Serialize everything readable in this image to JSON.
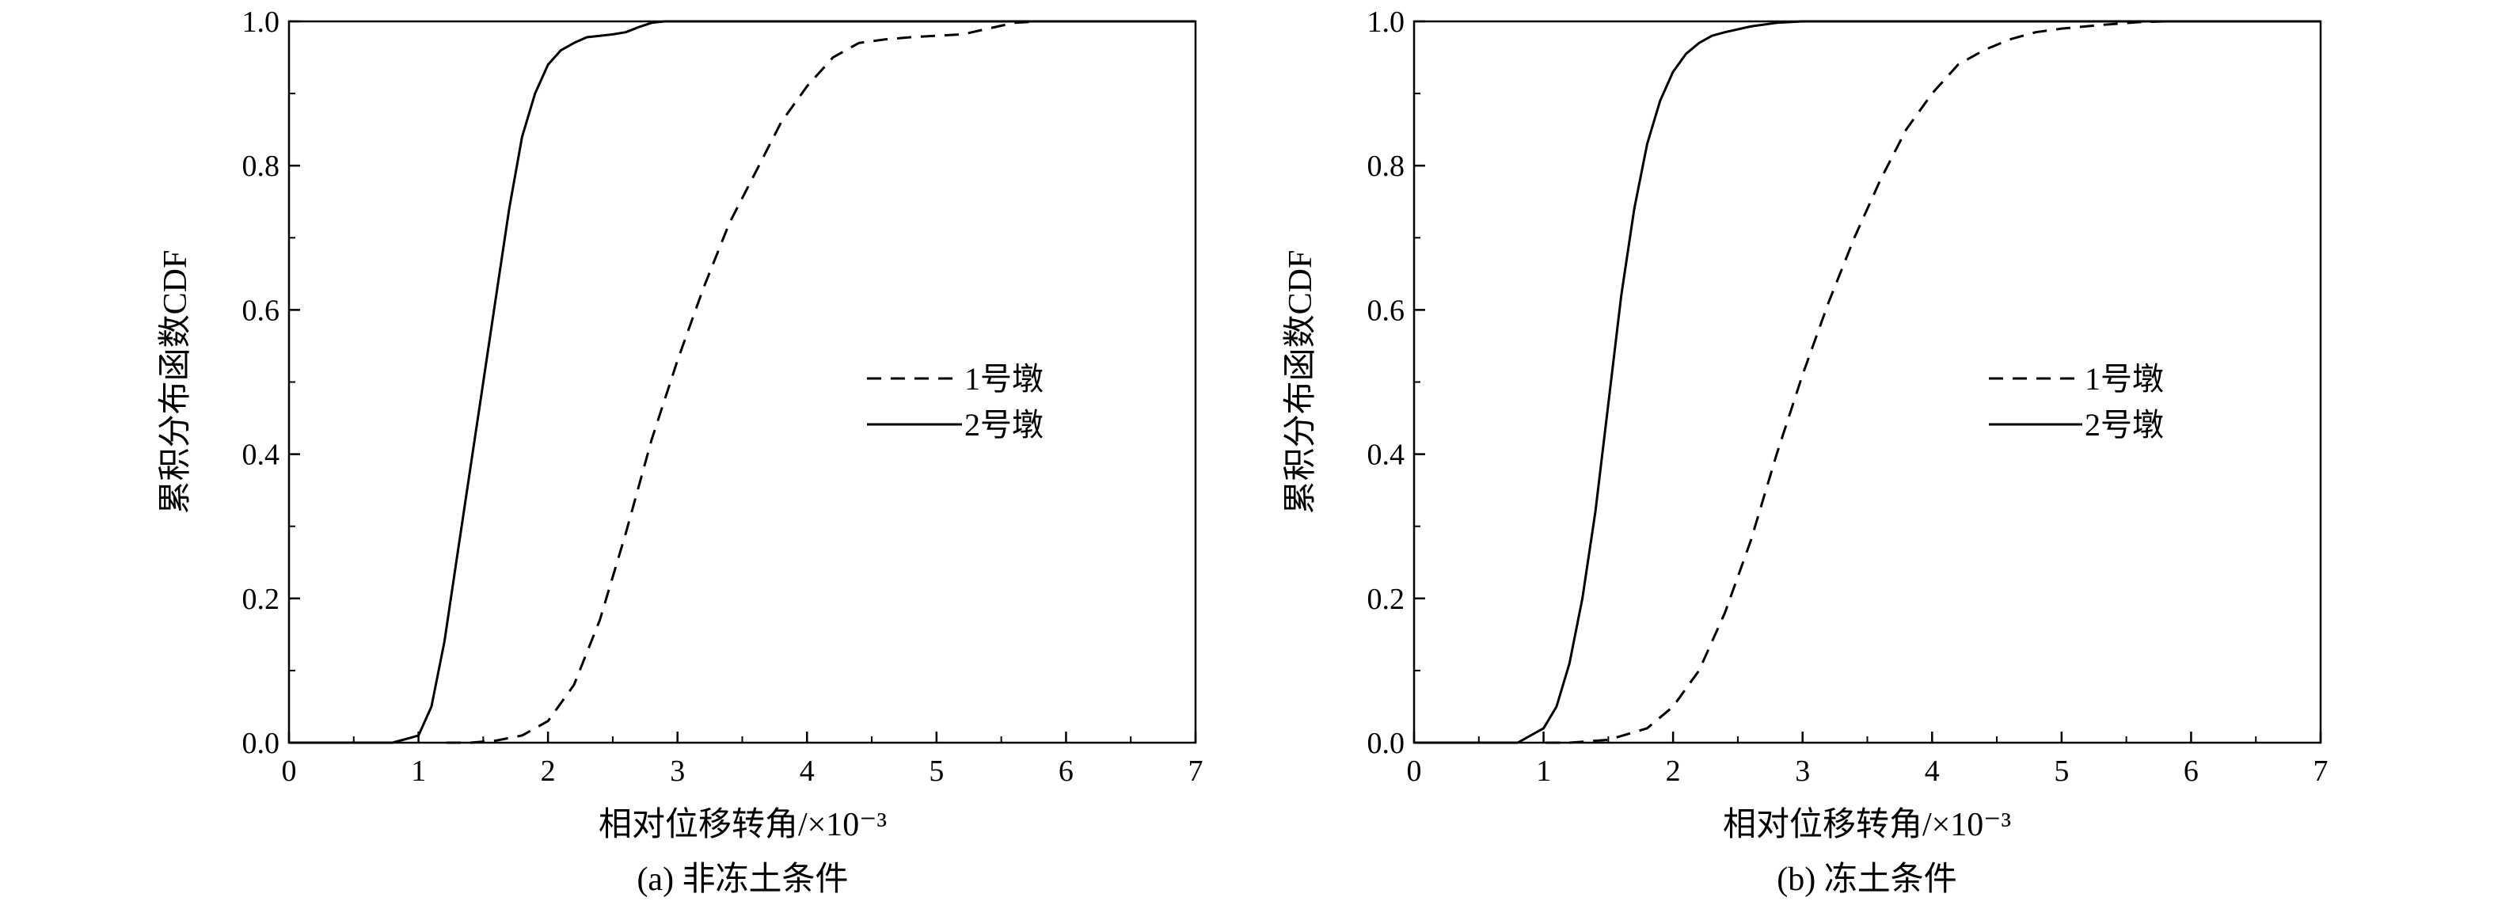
{
  "chart_data": [
    {
      "type": "line",
      "caption": "(a) 非冻土条件",
      "xlabel": "相对位移转角/×10⁻³",
      "ylabel": "累积分布函数CDF",
      "xlim": [
        0,
        7
      ],
      "ylim": [
        0,
        1.0
      ],
      "xticks": [
        "0",
        "1",
        "2",
        "3",
        "4",
        "5",
        "6",
        "7"
      ],
      "yticks": [
        "0.0",
        "0.2",
        "0.4",
        "0.6",
        "0.8",
        "1.0"
      ],
      "grid": false,
      "legend_position": "center-right",
      "series": [
        {
          "name": "1号墩",
          "style": "dashed",
          "color": "#000000",
          "x": [
            1.4,
            1.6,
            1.8,
            2.0,
            2.2,
            2.4,
            2.6,
            2.8,
            3.0,
            3.2,
            3.4,
            3.6,
            3.8,
            4.0,
            4.2,
            4.4,
            4.6,
            4.8,
            5.0,
            5.2,
            5.4,
            5.6,
            5.8
          ],
          "y": [
            0.0,
            0.003,
            0.01,
            0.03,
            0.08,
            0.17,
            0.29,
            0.42,
            0.53,
            0.63,
            0.72,
            0.79,
            0.86,
            0.91,
            0.95,
            0.97,
            0.975,
            0.978,
            0.98,
            0.982,
            0.99,
            0.998,
            1.0
          ]
        },
        {
          "name": "2号墩",
          "style": "solid",
          "color": "#000000",
          "x": [
            0.5,
            0.8,
            1.0,
            1.1,
            1.2,
            1.3,
            1.4,
            1.5,
            1.6,
            1.7,
            1.8,
            1.9,
            2.0,
            2.1,
            2.2,
            2.3,
            2.4,
            2.5,
            2.6,
            2.7,
            2.8,
            2.9,
            3.0
          ],
          "y": [
            0.0,
            0.0,
            0.01,
            0.05,
            0.14,
            0.26,
            0.38,
            0.5,
            0.62,
            0.74,
            0.84,
            0.9,
            0.94,
            0.96,
            0.97,
            0.978,
            0.98,
            0.982,
            0.985,
            0.992,
            0.998,
            1.0,
            1.0
          ]
        }
      ]
    },
    {
      "type": "line",
      "caption": "(b) 冻土条件",
      "xlabel": "相对位移转角/×10⁻³",
      "ylabel": "累积分布函数CDF",
      "xlim": [
        0,
        7
      ],
      "ylim": [
        0,
        1.0
      ],
      "xticks": [
        "0",
        "1",
        "2",
        "3",
        "4",
        "5",
        "6",
        "7"
      ],
      "yticks": [
        "0.0",
        "0.2",
        "0.4",
        "0.6",
        "0.8",
        "1.0"
      ],
      "grid": false,
      "legend_position": "center-right",
      "series": [
        {
          "name": "1号墩",
          "style": "dashed",
          "color": "#000000",
          "x": [
            1.2,
            1.5,
            1.8,
            2.0,
            2.2,
            2.4,
            2.6,
            2.8,
            3.0,
            3.2,
            3.4,
            3.6,
            3.8,
            4.0,
            4.2,
            4.4,
            4.6,
            4.8,
            5.0,
            5.3,
            5.6,
            5.8
          ],
          "y": [
            0.0,
            0.004,
            0.02,
            0.05,
            0.1,
            0.18,
            0.28,
            0.4,
            0.51,
            0.61,
            0.7,
            0.78,
            0.85,
            0.9,
            0.94,
            0.96,
            0.975,
            0.985,
            0.99,
            0.995,
            0.999,
            1.0
          ]
        },
        {
          "name": "2号墩",
          "style": "solid",
          "color": "#000000",
          "x": [
            0.5,
            0.8,
            1.0,
            1.1,
            1.2,
            1.3,
            1.4,
            1.5,
            1.6,
            1.7,
            1.8,
            1.9,
            2.0,
            2.1,
            2.2,
            2.3,
            2.4,
            2.6,
            2.8,
            3.0
          ],
          "y": [
            0.0,
            0.0,
            0.02,
            0.05,
            0.11,
            0.2,
            0.32,
            0.47,
            0.62,
            0.74,
            0.83,
            0.89,
            0.93,
            0.955,
            0.97,
            0.98,
            0.985,
            0.993,
            0.998,
            1.0
          ]
        }
      ]
    }
  ]
}
